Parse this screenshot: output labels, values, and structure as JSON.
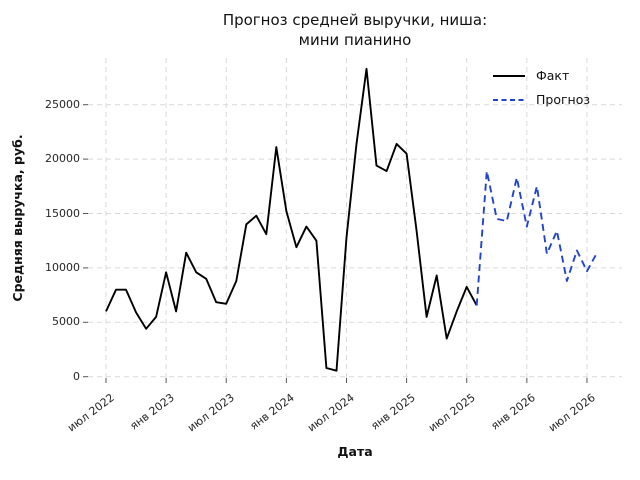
{
  "title": "Прогноз средней выручки, ниша:\nмини пианино",
  "axis": {
    "xlabel": "Дата",
    "ylabel": "Средняя выручка, руб."
  },
  "legend": {
    "items": [
      {
        "label": "Факт",
        "color": "#000000",
        "line_style": "solid"
      },
      {
        "label": "Прогноз",
        "color": "#2244cc",
        "line_style": "dashed"
      }
    ]
  },
  "colors": {
    "fact_line": "#000000",
    "forecast_line": "#2244cc",
    "grid": "#d9d9d9",
    "tick_mark": "#555555"
  },
  "chart_data": {
    "type": "line",
    "title": "Прогноз средней выручки, ниша: мини пианино",
    "xlabel": "Дата",
    "ylabel": "Средняя выручка, руб.",
    "grid": "dashed both axes",
    "legend_position": "upper right, no frame",
    "x_tick_labels": [
      "июл 2022",
      "янв 2023",
      "июл 2023",
      "янв 2024",
      "июл 2024",
      "янв 2025",
      "июл 2025",
      "янв 2026",
      "июл 2026"
    ],
    "x_months_per_tick": 6,
    "y_ticks": [
      0,
      5000,
      10000,
      15000,
      20000,
      25000
    ],
    "y_tick_labels": [
      "0",
      "5000",
      "10000",
      "15000",
      "20000",
      "25000"
    ],
    "ylim": [
      -800,
      29700
    ],
    "series": [
      {
        "name": "Факт",
        "color": "#000000",
        "line_style": "solid",
        "start_month": "июл 2022",
        "end_month": "авг 2025",
        "month_offset": 0,
        "values": [
          6000,
          8000,
          8000,
          5900,
          4400,
          5500,
          9600,
          6000,
          11400,
          9600,
          9000,
          6850,
          6700,
          8800,
          14000,
          14800,
          13100,
          21100,
          15200,
          11900,
          13800,
          12500,
          800,
          550,
          12800,
          21400,
          28300,
          19400,
          18900,
          21400,
          20500,
          13400,
          5500,
          9300,
          3500,
          6000,
          8250,
          6550
        ]
      },
      {
        "name": "Прогноз",
        "color": "#2244cc",
        "line_style": "dashed",
        "start_month": "авг 2025",
        "end_month": "авг 2026",
        "month_offset": 37,
        "values": [
          6550,
          18900,
          14500,
          14300,
          18300,
          13800,
          17500,
          11300,
          13400,
          8800,
          11600,
          9700,
          11400
        ]
      }
    ]
  }
}
